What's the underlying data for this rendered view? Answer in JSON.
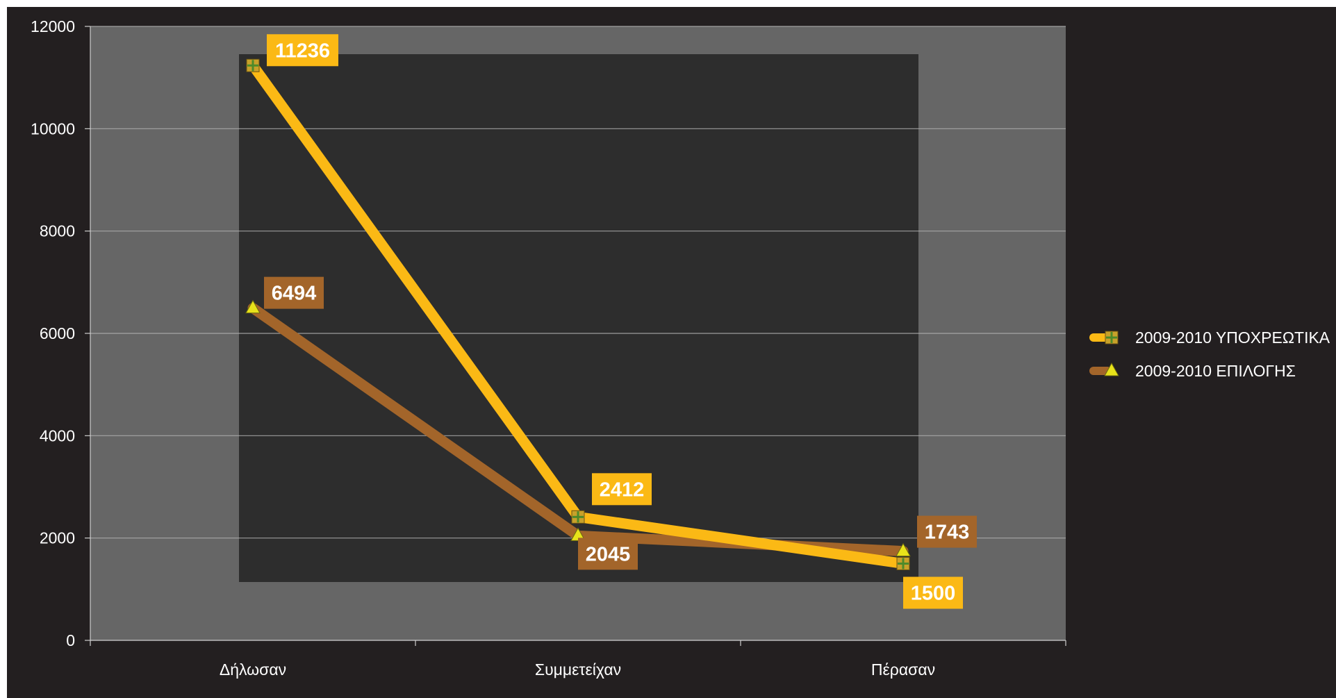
{
  "chart_data": {
    "type": "line",
    "categories": [
      "Δήλωσαν",
      "Συμμετείχαν",
      "Πέρασαν"
    ],
    "series": [
      {
        "name": "2009-2010 ΥΠΟΧΡΕΩΤΙΚΑ",
        "values": [
          11236,
          2412,
          1500
        ],
        "color": "#fbb915",
        "marker": "square"
      },
      {
        "name": "2009-2010 ΕΠΙΛΟΓΗΣ",
        "values": [
          6494,
          2045,
          1743
        ],
        "color": "#a3652a",
        "marker": "triangle"
      }
    ],
    "ylim": [
      0,
      12000
    ],
    "yticks": [
      0,
      2000,
      4000,
      6000,
      8000,
      10000,
      12000
    ],
    "grid": true,
    "legend": "right",
    "title": "",
    "xlabel": "",
    "ylabel": "",
    "colors": {
      "background": "#231f20",
      "plot_area": "#666666",
      "inner_panel": "#2d2d2d",
      "gridline": "#b0b0b0",
      "text": "#ffffff"
    }
  }
}
